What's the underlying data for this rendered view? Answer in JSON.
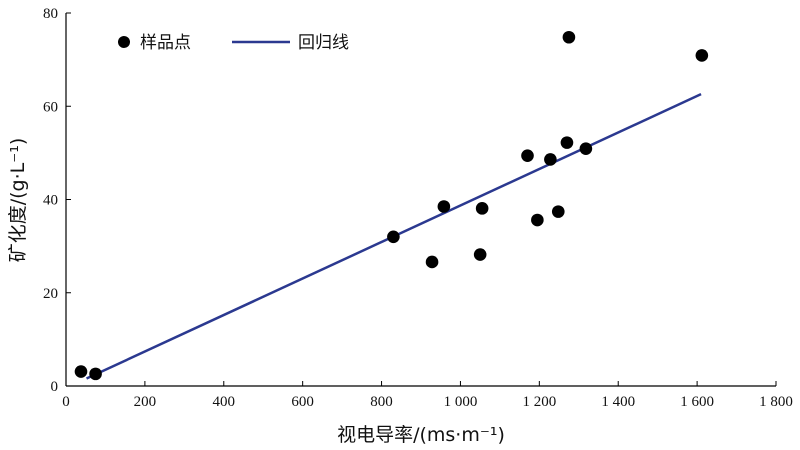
{
  "chart_data": {
    "type": "scatter",
    "xlabel": "视电导率/(ms·m⁻¹)",
    "ylabel": "矿化度/(g·L⁻¹)",
    "xlim": [
      0,
      1800
    ],
    "ylim": [
      0,
      80
    ],
    "x_ticks": [
      0,
      200,
      400,
      600,
      800,
      1000,
      1200,
      1400,
      1600,
      1800
    ],
    "x_tick_labels": [
      "0",
      "200",
      "400",
      "600",
      "800",
      "1 000",
      "1 200",
      "1 400",
      "1 600",
      "1 800"
    ],
    "y_ticks": [
      0,
      20,
      40,
      60,
      80
    ],
    "y_tick_labels": [
      "0",
      "20",
      "40",
      "60",
      "80"
    ],
    "grid": false,
    "legend": {
      "position": "top-left",
      "entries": [
        "样品点",
        "回归线"
      ]
    },
    "series": [
      {
        "name": "样品点",
        "kind": "scatter",
        "color": "#000000",
        "points": [
          [
            38,
            3.1
          ],
          [
            75,
            2.6
          ],
          [
            830,
            32.0
          ],
          [
            928,
            26.6
          ],
          [
            958,
            38.5
          ],
          [
            1050,
            28.2
          ],
          [
            1055,
            38.1
          ],
          [
            1170,
            49.4
          ],
          [
            1195,
            35.6
          ],
          [
            1228,
            48.6
          ],
          [
            1248,
            37.4
          ],
          [
            1270,
            52.2
          ],
          [
            1275,
            74.8
          ],
          [
            1318,
            50.9
          ],
          [
            1612,
            70.9
          ]
        ]
      },
      {
        "name": "回归线",
        "kind": "line",
        "color": "#2b3990",
        "points": [
          [
            52,
            1.6
          ],
          [
            1610,
            62.6
          ]
        ]
      }
    ]
  }
}
